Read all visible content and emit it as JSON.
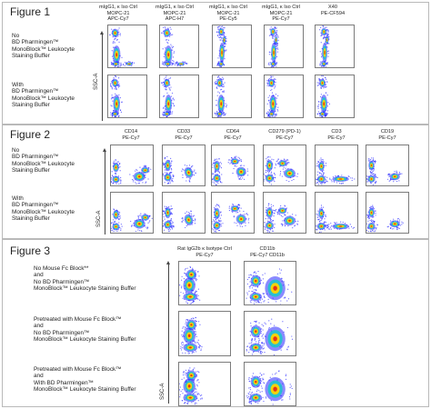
{
  "figure1": {
    "title": "Figure 1",
    "rows": [
      {
        "label": "No\nBD Pharmingen™\nMonoBlock™ Leukocyte\nStaining Buffer"
      },
      {
        "label": "With\nBD Pharmingen™\nMonoBlock™ Leukocyte\nStaining Buffer"
      }
    ],
    "columns": [
      {
        "header": "mIgG1, κ Iso Ctrl\nMOPC-21\nAPC-Cy7"
      },
      {
        "header": "mIgG1, κ Iso Ctrl\nMOPC-21\nAPC-H7"
      },
      {
        "header": "mIgG1, κ Iso Ctrl\nMOPC-21\nPE-Cy5"
      },
      {
        "header": "mIgG1, κ Iso Ctrl\nMOPC-21\nPE-Cy7"
      },
      {
        "header": "X40\nPE-CF594"
      }
    ],
    "y_axis": "SSC-A"
  },
  "figure2": {
    "title": "Figure 2",
    "rows": [
      {
        "label": "No\nBD Pharmingen™\nMonoBlock™ Leukocyte\nStaining Buffer"
      },
      {
        "label": "With\nBD Pharmingen™\nMonoBlock™ Leukocyte\nStaining Buffer"
      }
    ],
    "columns": [
      {
        "header": "CD14\nPE-Cy7"
      },
      {
        "header": "CD33\nPE-Cy7"
      },
      {
        "header": "CD64\nPE-Cy7"
      },
      {
        "header": "CD279 (PD-1)\nPE-Cy7"
      },
      {
        "header": "CD3\nPE-Cy7"
      },
      {
        "header": "CD19\nPE-Cy7"
      }
    ],
    "y_axis": "SSC-A"
  },
  "figure3": {
    "title": "Figure 3",
    "rows": [
      {
        "label": "No Mouse Fc Block**\n      and\nNo BD Pharmingen™\nMonoBlock™ Leukocyte Staining Buffer"
      },
      {
        "label": "Pretreated with Mouse Fc Block™\n      and\nNo BD Pharmingen™\nMonoBlock™ Leukocyte Staining Buffer"
      },
      {
        "label": "Pretreated with Mouse Fc Block™\n      and\nWith BD Pharmingen™\nMonoBlock™ Leukocyte Staining Buffer"
      }
    ],
    "columns": [
      {
        "header": "Rat IgG2b κ Isotype  Ctrl\nPE-Cy7"
      },
      {
        "header": "CD11b\nPE-Cy7 CD11b"
      }
    ],
    "y_axis": "SSC-A"
  },
  "colors": {
    "panel_border": "#b9b9b9",
    "density_low": "#2a2aff",
    "density_mid": "#19c8c8",
    "density_high": "#ffd400",
    "density_peak": "#e83018"
  }
}
